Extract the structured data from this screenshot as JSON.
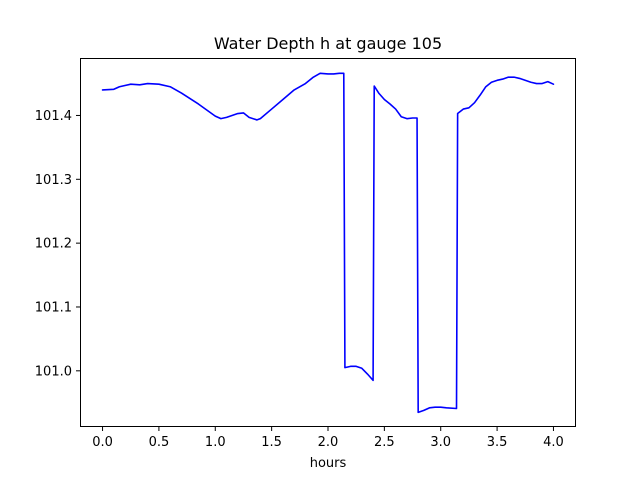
{
  "chart_data": {
    "type": "line",
    "title": "Water Depth h at gauge 105",
    "xlabel": "hours",
    "ylabel": "",
    "xlim": [
      -0.2,
      4.2
    ],
    "ylim": [
      100.912,
      101.49
    ],
    "xticks": [
      0.0,
      0.5,
      1.0,
      1.5,
      2.0,
      2.5,
      3.0,
      3.5,
      4.0
    ],
    "xtick_labels": [
      "0.0",
      "0.5",
      "1.0",
      "1.5",
      "2.0",
      "2.5",
      "3.0",
      "3.5",
      "4.0"
    ],
    "yticks": [
      101.0,
      101.1,
      101.2,
      101.3,
      101.4
    ],
    "ytick_labels": [
      "101.0",
      "101.1",
      "101.2",
      "101.3",
      "101.4"
    ],
    "grid": false,
    "legend": "none",
    "series": [
      {
        "color": "#0000ff",
        "x": [
          0.0,
          0.1,
          0.15,
          0.25,
          0.33,
          0.4,
          0.5,
          0.6,
          0.7,
          0.85,
          1.0,
          1.05,
          1.1,
          1.2,
          1.25,
          1.3,
          1.37,
          1.4,
          1.5,
          1.6,
          1.7,
          1.8,
          1.87,
          1.93,
          2.0,
          2.05,
          2.1,
          2.14,
          2.15,
          2.2,
          2.25,
          2.3,
          2.35,
          2.4,
          2.41,
          2.45,
          2.5,
          2.55,
          2.6,
          2.65,
          2.7,
          2.75,
          2.79,
          2.8,
          2.85,
          2.9,
          2.95,
          3.0,
          3.05,
          3.14,
          3.15,
          3.2,
          3.25,
          3.3,
          3.35,
          3.4,
          3.45,
          3.5,
          3.55,
          3.6,
          3.65,
          3.7,
          3.8,
          3.85,
          3.9,
          3.95,
          4.0
        ],
        "y": [
          101.44,
          101.441,
          101.445,
          101.449,
          101.448,
          101.45,
          101.449,
          101.445,
          101.435,
          101.418,
          101.399,
          101.395,
          101.397,
          101.403,
          101.404,
          101.397,
          101.393,
          101.395,
          101.41,
          101.425,
          101.44,
          101.45,
          101.46,
          101.466,
          101.465,
          101.465,
          101.466,
          101.466,
          101.005,
          101.007,
          101.007,
          101.004,
          100.995,
          100.985,
          101.446,
          101.435,
          101.425,
          101.418,
          101.41,
          101.398,
          101.395,
          101.396,
          101.396,
          100.935,
          100.938,
          100.942,
          100.943,
          100.943,
          100.942,
          100.941,
          101.403,
          101.41,
          101.412,
          101.42,
          101.432,
          101.445,
          101.452,
          101.455,
          101.457,
          101.46,
          101.46,
          101.458,
          101.452,
          101.45,
          101.45,
          101.453,
          101.449
        ]
      }
    ]
  }
}
